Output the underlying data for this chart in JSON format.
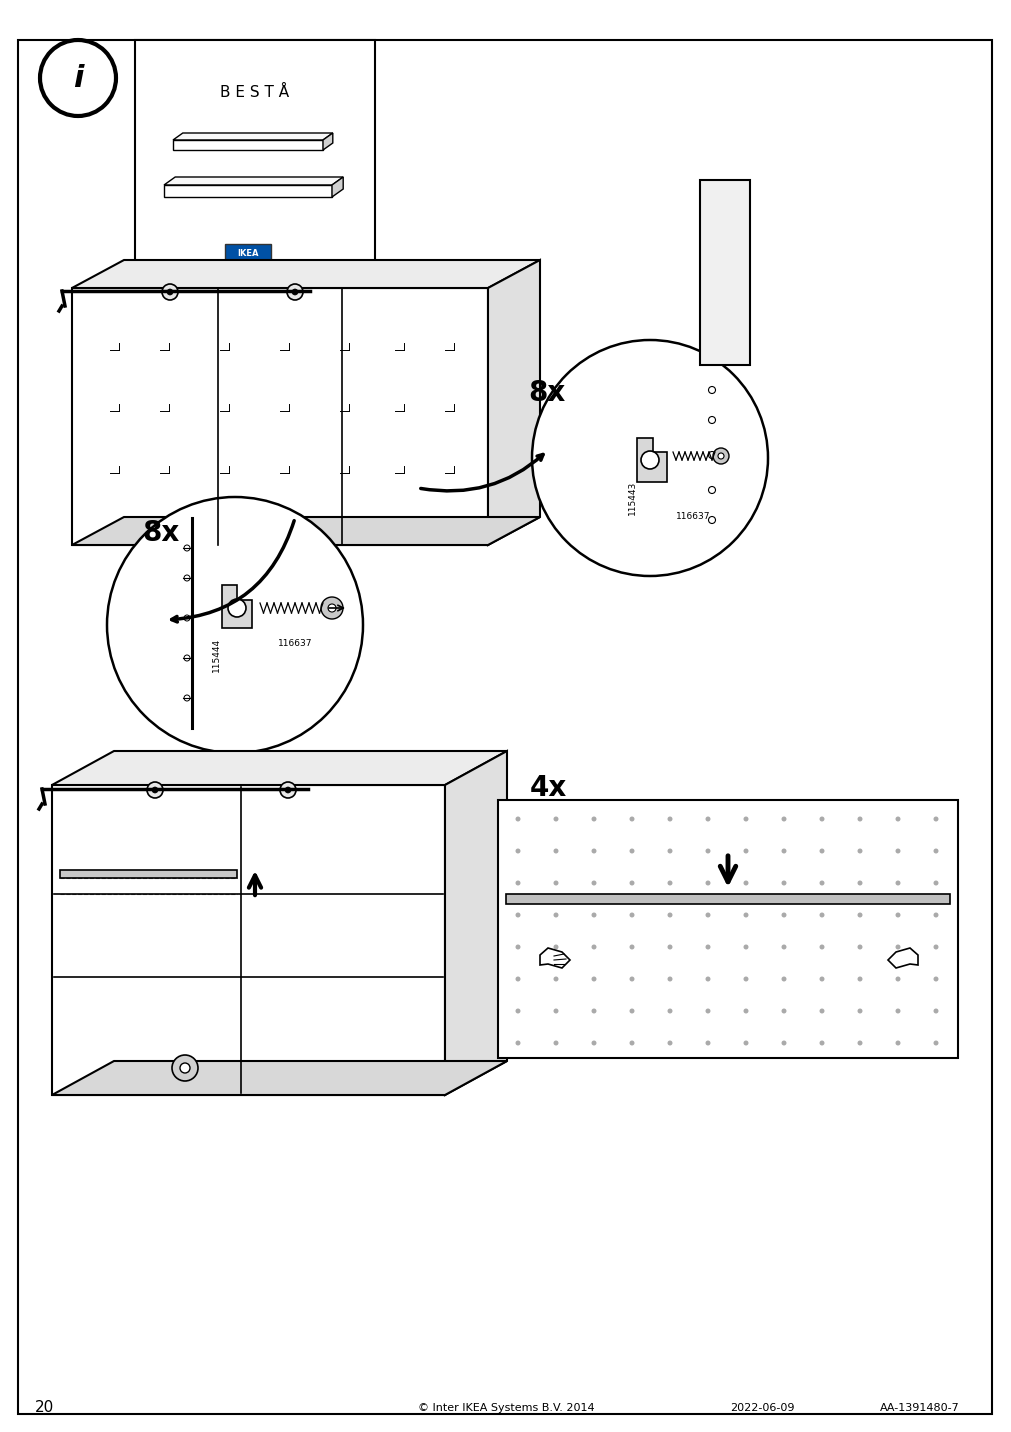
{
  "page_number": "20",
  "background_color": "#ffffff",
  "border_color": "#000000",
  "text_color": "#000000",
  "footer_text": "© Inter IKEA Systems B.V. 2014",
  "footer_date": "2022-06-09",
  "footer_code": "AA-1391480-7",
  "title_text": "B E S T Å",
  "info_icon_text": "i",
  "quantity_8x_top": "8x",
  "quantity_8x_bottom": "8x",
  "quantity_4x": "4x",
  "part_115444": "115444",
  "part_116637_left": "116637",
  "part_115443": "115443",
  "part_116637_right": "116637",
  "line_color": "#000000",
  "fill_light": "#f0f0f0",
  "fill_medium": "#d0d0d0",
  "fill_dark": "#808080"
}
